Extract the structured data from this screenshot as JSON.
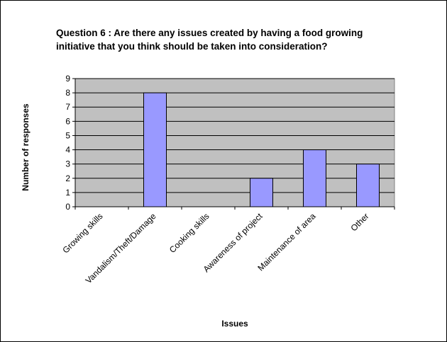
{
  "chart_data": {
    "type": "bar",
    "title": "Question 6 : Are there any issues created by having a food growing initiative that you think should be taken into consideration?",
    "xlabel": "Issues",
    "ylabel": "Number of responses",
    "categories": [
      "Growing skills",
      "Vandalism/Theft/Damage",
      "Cooking skills",
      "Awareness of project",
      "Maintenance of area",
      "Other"
    ],
    "values": [
      0,
      8,
      0,
      2,
      4,
      3
    ],
    "ylim": [
      0,
      9
    ],
    "yticks": [
      "0",
      "1",
      "2",
      "3",
      "4",
      "5",
      "6",
      "7",
      "8",
      "9"
    ],
    "grid": true,
    "legend": "none",
    "colors": {
      "bar": "#9999ff",
      "bar_border": "#000000",
      "plot_background": "#c0c0c0",
      "gridline": "#000000"
    }
  }
}
